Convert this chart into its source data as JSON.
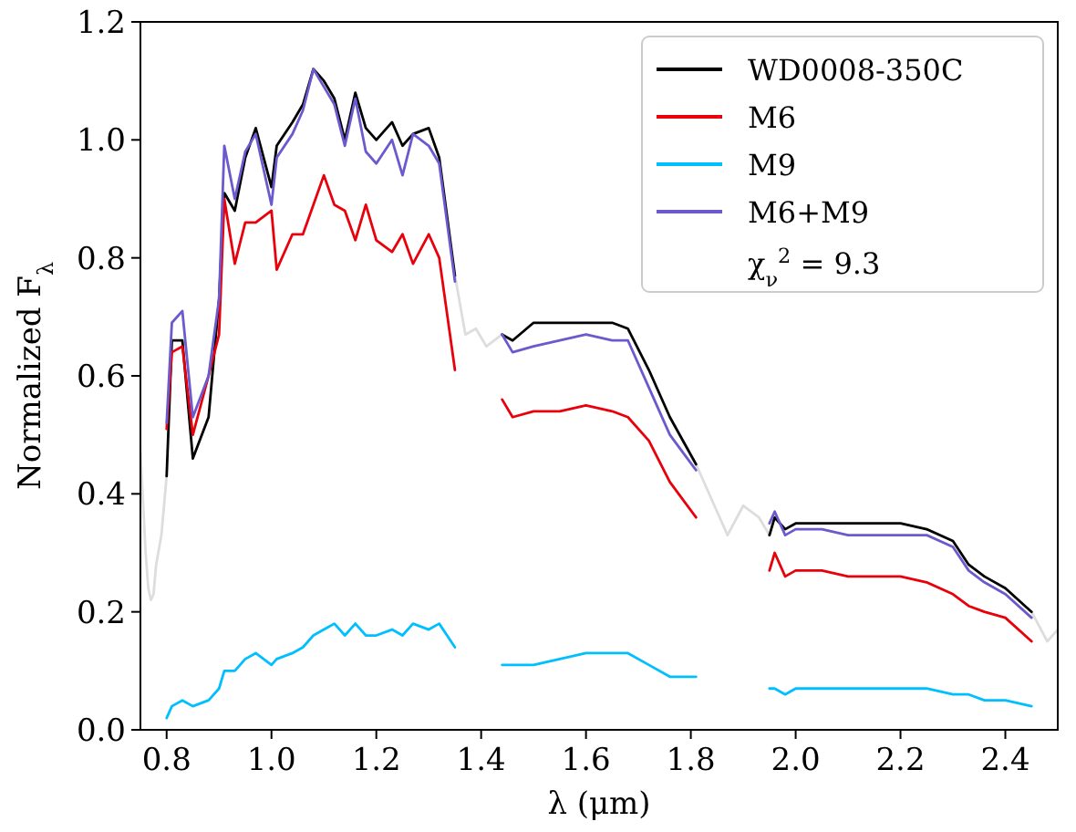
{
  "chart_data": {
    "type": "line",
    "xlabel": "λ (μm)",
    "ylabel": "Normalized F$_{λ}$",
    "x": [
      0.8,
      0.81,
      0.83,
      0.85,
      0.88,
      0.9,
      0.91,
      0.93,
      0.95,
      0.97,
      1.0,
      1.01,
      1.04,
      1.06,
      1.08,
      1.1,
      1.12,
      1.14,
      1.16,
      1.18,
      1.2,
      1.23,
      1.25,
      1.27,
      1.3,
      1.32,
      1.35,
      1.4,
      1.44,
      1.46,
      1.5,
      1.55,
      1.6,
      1.65,
      1.68,
      1.72,
      1.76,
      1.81,
      1.88,
      1.95,
      1.96,
      1.98,
      2.0,
      2.05,
      2.1,
      2.15,
      2.2,
      2.25,
      2.3,
      2.33,
      2.36,
      2.4,
      2.45
    ],
    "series": [
      {
        "x": [
          0.75,
          0.76,
          0.765,
          0.77,
          0.775,
          0.78,
          0.79,
          0.8,
          null,
          1.35,
          1.37,
          1.39,
          1.41,
          1.44,
          null,
          1.81,
          1.85,
          1.87,
          1.9,
          1.93,
          1.95,
          null,
          2.45,
          2.48,
          2.5
        ],
        "color": "#dddddd",
        "values": [
          0.47,
          0.3,
          0.24,
          0.22,
          0.23,
          0.28,
          0.33,
          0.43,
          null,
          0.77,
          0.67,
          0.68,
          0.65,
          0.67,
          null,
          0.45,
          0.37,
          0.33,
          0.38,
          0.36,
          0.33,
          null,
          0.2,
          0.15,
          0.17
        ]
      },
      {
        "name": "WD0008-350C",
        "color": "#000000",
        "values": [
          0.43,
          0.66,
          0.66,
          0.46,
          0.53,
          0.73,
          0.91,
          0.88,
          0.97,
          1.02,
          0.92,
          0.99,
          1.03,
          1.06,
          1.12,
          1.1,
          1.07,
          1.0,
          1.08,
          1.02,
          1.0,
          1.03,
          0.99,
          1.01,
          1.02,
          0.97,
          0.77,
          null,
          0.67,
          0.66,
          0.69,
          0.69,
          0.69,
          0.69,
          0.68,
          0.61,
          0.53,
          0.45,
          null,
          0.33,
          0.36,
          0.34,
          0.35,
          0.35,
          0.35,
          0.35,
          0.35,
          0.34,
          0.32,
          0.28,
          0.26,
          0.24,
          0.2
        ]
      },
      {
        "name": "M6",
        "color": "#e8000b",
        "values": [
          0.51,
          0.64,
          0.65,
          0.5,
          0.6,
          0.67,
          0.9,
          0.79,
          0.86,
          0.86,
          0.88,
          0.78,
          0.84,
          0.84,
          0.89,
          0.94,
          0.89,
          0.88,
          0.83,
          0.89,
          0.83,
          0.81,
          0.84,
          0.79,
          0.84,
          0.8,
          0.61,
          null,
          0.56,
          0.53,
          0.54,
          0.54,
          0.55,
          0.54,
          0.53,
          0.49,
          0.42,
          0.36,
          null,
          0.27,
          0.3,
          0.26,
          0.27,
          0.27,
          0.26,
          0.26,
          0.26,
          0.25,
          0.23,
          0.21,
          0.2,
          0.19,
          0.15
        ]
      },
      {
        "name": "M9",
        "color": "#00bfff",
        "values": [
          0.02,
          0.04,
          0.05,
          0.04,
          0.05,
          0.07,
          0.1,
          0.1,
          0.12,
          0.13,
          0.11,
          0.12,
          0.13,
          0.14,
          0.16,
          0.17,
          0.18,
          0.16,
          0.18,
          0.16,
          0.16,
          0.17,
          0.16,
          0.18,
          0.17,
          0.18,
          0.14,
          null,
          0.11,
          0.11,
          0.11,
          0.12,
          0.13,
          0.13,
          0.13,
          0.11,
          0.09,
          0.09,
          null,
          0.07,
          0.07,
          0.06,
          0.07,
          0.07,
          0.07,
          0.07,
          0.07,
          0.07,
          0.06,
          0.06,
          0.05,
          0.05,
          0.04
        ]
      },
      {
        "name": "M6+M9",
        "color": "#6a5acd",
        "values": [
          0.52,
          0.69,
          0.71,
          0.53,
          0.6,
          0.73,
          0.99,
          0.9,
          0.98,
          1.01,
          0.89,
          0.97,
          1.01,
          1.05,
          1.12,
          1.09,
          1.06,
          0.99,
          1.07,
          0.98,
          0.96,
          1.0,
          0.94,
          1.01,
          0.99,
          0.96,
          0.76,
          null,
          0.67,
          0.64,
          0.65,
          0.66,
          0.67,
          0.66,
          0.66,
          0.58,
          0.5,
          0.44,
          null,
          0.35,
          0.37,
          0.33,
          0.34,
          0.34,
          0.33,
          0.33,
          0.33,
          0.33,
          0.31,
          0.27,
          0.25,
          0.23,
          0.19
        ]
      }
    ],
    "annotations": [
      "χ$_{ν}$$^{2}$ = 9.3"
    ],
    "xlim": [
      0.75,
      2.5
    ],
    "ylim": [
      0,
      1.2
    ],
    "xticks": [
      {
        "value": 0.8,
        "label": "0.8"
      },
      {
        "value": 1.0,
        "label": "1.0"
      },
      {
        "value": 1.2,
        "label": "1.2"
      },
      {
        "value": 1.4,
        "label": "1.4"
      },
      {
        "value": 1.6,
        "label": "1.6"
      },
      {
        "value": 1.8,
        "label": "1.8"
      },
      {
        "value": 2.0,
        "label": "2.0"
      },
      {
        "value": 2.2,
        "label": "2.2"
      },
      {
        "value": 2.4,
        "label": "2.4"
      }
    ],
    "yticks": [
      {
        "value": 0,
        "label": "0.0"
      },
      {
        "value": 0.2,
        "label": "0.2"
      },
      {
        "value": 0.4,
        "label": "0.4"
      },
      {
        "value": 0.6,
        "label": "0.6"
      },
      {
        "value": 0.8,
        "label": "0.8"
      },
      {
        "value": 1.0,
        "label": "1.0"
      },
      {
        "value": 1.2,
        "label": "1.2"
      }
    ],
    "legend": "top right",
    "line_style": "solid"
  }
}
